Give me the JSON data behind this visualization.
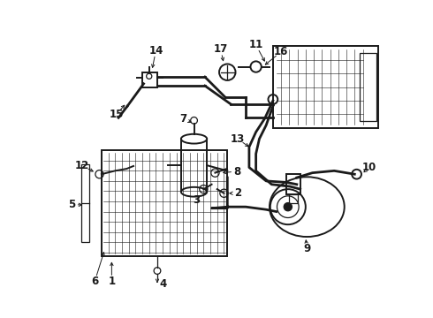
{
  "bg_color": "#ffffff",
  "lc": "#1a1a1a",
  "lw_thick": 2.0,
  "lw_med": 1.4,
  "lw_thin": 0.9,
  "lw_fill": 0.7,
  "figsize": [
    4.9,
    3.6
  ],
  "dpi": 100,
  "xlim": [
    0,
    490
  ],
  "ylim": [
    0,
    360
  ]
}
